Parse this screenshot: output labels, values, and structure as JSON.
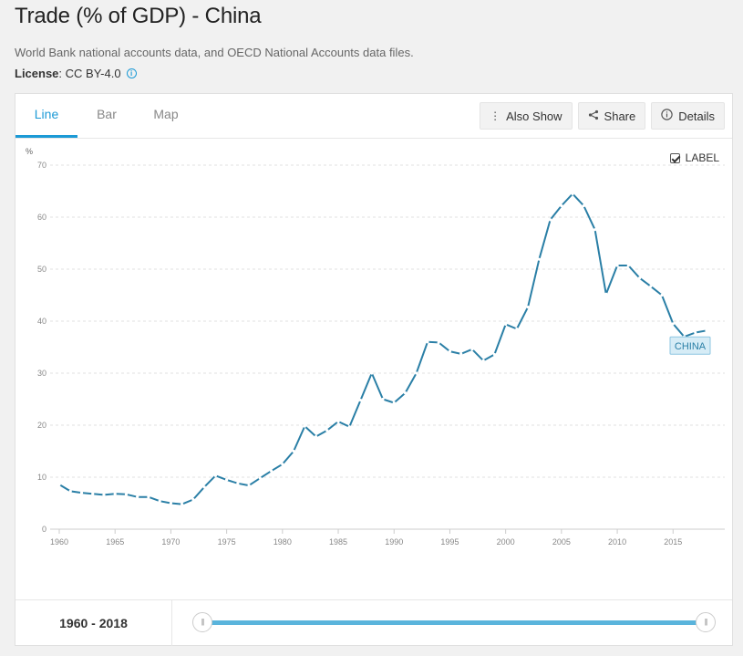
{
  "header": {
    "title": "Trade (% of GDP) - China",
    "source": "World Bank national accounts data, and OECD National Accounts data files.",
    "license_label": "License",
    "license_value": " : CC BY-4.0",
    "info_icon": "info-icon"
  },
  "tabs": [
    {
      "label": "Line",
      "active": true
    },
    {
      "label": "Bar",
      "active": false
    },
    {
      "label": "Map",
      "active": false
    }
  ],
  "toolbar": {
    "also_show": "Also Show",
    "share": "Share",
    "details": "Details"
  },
  "label_toggle": {
    "label": "LABEL",
    "checked": true
  },
  "footer": {
    "range": "1960 - 2018"
  },
  "colors": {
    "accent": "#1c9ad6",
    "line": "#2a7fa6",
    "slider": "#5ab4dc"
  },
  "chart_data": {
    "type": "line",
    "ylabel": "%",
    "ylim": [
      0,
      70
    ],
    "yticks": [
      0,
      10,
      20,
      30,
      40,
      50,
      60,
      70
    ],
    "xlim": [
      1960,
      2018
    ],
    "xticks": [
      1960,
      1965,
      1970,
      1975,
      1980,
      1985,
      1990,
      1995,
      2000,
      2005,
      2010,
      2015
    ],
    "grid": true,
    "series": [
      {
        "name": "CHINA",
        "x": [
          1960,
          1961,
          1962,
          1963,
          1964,
          1965,
          1966,
          1967,
          1968,
          1969,
          1970,
          1971,
          1972,
          1973,
          1974,
          1975,
          1976,
          1977,
          1978,
          1979,
          1980,
          1981,
          1982,
          1983,
          1984,
          1985,
          1986,
          1987,
          1988,
          1989,
          1990,
          1991,
          1992,
          1993,
          1994,
          1995,
          1996,
          1997,
          1998,
          1999,
          2000,
          2001,
          2002,
          2003,
          2004,
          2005,
          2006,
          2007,
          2008,
          2009,
          2010,
          2011,
          2012,
          2013,
          2014,
          2015,
          2016,
          2017,
          2018
        ],
        "values": [
          8.6,
          7.3,
          7.0,
          6.8,
          6.6,
          6.8,
          6.7,
          6.2,
          6.2,
          5.4,
          5.0,
          4.8,
          5.7,
          8.1,
          10.3,
          9.5,
          8.8,
          8.4,
          9.8,
          11.2,
          12.5,
          15.0,
          19.8,
          17.8,
          19.0,
          20.7,
          19.7,
          24.8,
          30.0,
          25.0,
          24.3,
          26.2,
          30.0,
          36.0,
          35.9,
          34.2,
          33.7,
          34.6,
          32.4,
          33.6,
          39.4,
          38.5,
          42.7,
          51.9,
          59.5,
          62.2,
          64.5,
          62.2,
          57.6,
          45.2,
          50.7,
          50.7,
          48.3,
          46.7,
          45.0,
          39.5,
          37.0,
          37.8,
          38.2
        ]
      }
    ]
  }
}
